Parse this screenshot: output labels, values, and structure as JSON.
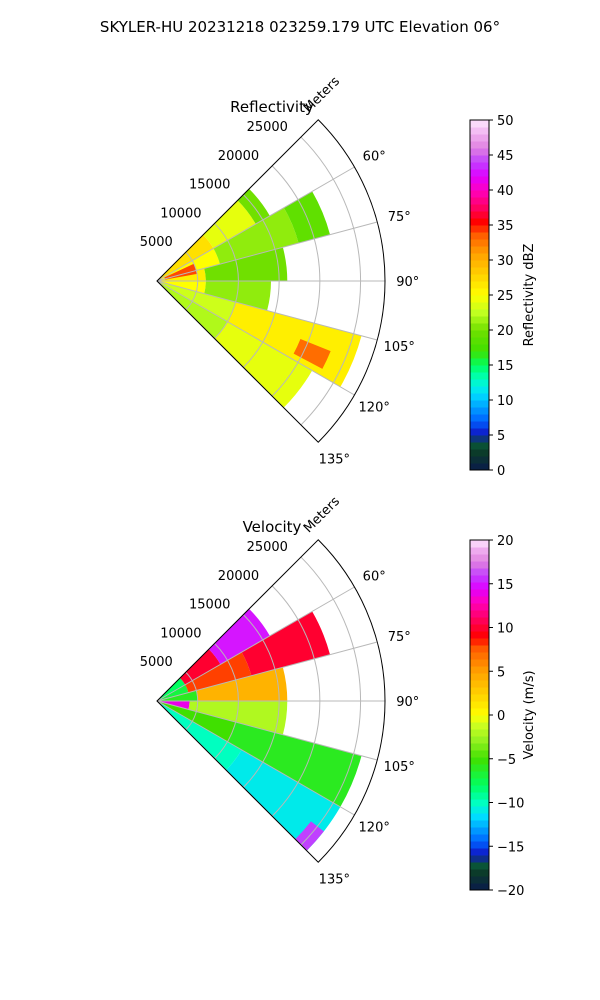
{
  "figure": {
    "suptitle": "SKYLER-HU  20231218  023259.179 UTC Elevation 06°"
  },
  "chart_data": [
    {
      "type": "heatmap",
      "title": "Reflectivity",
      "projection": "polar sector (PPI)",
      "range_label": "Meters",
      "range_ticks": [
        5000,
        10000,
        15000,
        20000,
        25000
      ],
      "range_tick_labels": [
        "5000",
        "10000",
        "15000",
        "20000",
        "25000"
      ],
      "range_max": 28000,
      "azimuth_range_deg": [
        45,
        135
      ],
      "azimuth_ticks_deg": [
        60,
        75,
        90,
        105,
        120,
        135
      ],
      "azimuth_tick_labels": [
        "60°",
        "75°",
        "90°",
        "105°",
        "120°",
        "135°"
      ],
      "grid": true,
      "colorbar": {
        "label": "Reflectivity dBZ",
        "range": [
          0,
          50
        ],
        "ticks": [
          0,
          5,
          10,
          15,
          20,
          25,
          30,
          35,
          40,
          45,
          50
        ],
        "tick_labels": [
          "0",
          "5",
          "10",
          "15",
          "20",
          "25",
          "30",
          "35",
          "40",
          "45",
          "50"
        ],
        "position": "right"
      },
      "stops": [
        {
          "v": 0,
          "c": "#0a1a4a"
        },
        {
          "v": 2.5,
          "c": "#0b3b2a"
        },
        {
          "v": 4,
          "c": "#0a5a3a"
        },
        {
          "v": 5,
          "c": "#1010c0"
        },
        {
          "v": 7,
          "c": "#0060ff"
        },
        {
          "v": 9,
          "c": "#00a0ff"
        },
        {
          "v": 11,
          "c": "#00e0ff"
        },
        {
          "v": 13,
          "c": "#00ffc0"
        },
        {
          "v": 15,
          "c": "#00ff60"
        },
        {
          "v": 17,
          "c": "#40e000"
        },
        {
          "v": 20,
          "c": "#70e000"
        },
        {
          "v": 22.5,
          "c": "#c0ff20"
        },
        {
          "v": 25,
          "c": "#ffff00"
        },
        {
          "v": 28,
          "c": "#ffd000"
        },
        {
          "v": 31,
          "c": "#ffa000"
        },
        {
          "v": 33.5,
          "c": "#ff6000"
        },
        {
          "v": 35.5,
          "c": "#ff0000"
        },
        {
          "v": 37.5,
          "c": "#ff0060"
        },
        {
          "v": 40,
          "c": "#ff00c0"
        },
        {
          "v": 42,
          "c": "#e000ff"
        },
        {
          "v": 44,
          "c": "#c040ff"
        },
        {
          "v": 46,
          "c": "#e080e0"
        },
        {
          "v": 48,
          "c": "#f0b0f0"
        },
        {
          "v": 50,
          "c": "#ffe8ff"
        }
      ],
      "field": [
        {
          "az": [
            45,
            60
          ],
          "r": [
            0,
            8000
          ],
          "v": 27
        },
        {
          "az": [
            45,
            60
          ],
          "r": [
            8000,
            14000
          ],
          "v": 24
        },
        {
          "az": [
            45,
            60
          ],
          "r": [
            14000,
            16000
          ],
          "v": 20
        },
        {
          "az": [
            60,
            75
          ],
          "r": [
            0,
            8000
          ],
          "v": 25
        },
        {
          "az": [
            60,
            75
          ],
          "r": [
            8000,
            18000
          ],
          "v": 21
        },
        {
          "az": [
            60,
            75
          ],
          "r": [
            18000,
            22000
          ],
          "v": 19
        },
        {
          "az": [
            75,
            90
          ],
          "r": [
            0,
            6000
          ],
          "v": 26
        },
        {
          "az": [
            75,
            90
          ],
          "r": [
            6000,
            16000
          ],
          "v": 20
        },
        {
          "az": [
            90,
            105
          ],
          "r": [
            0,
            6000
          ],
          "v": 25
        },
        {
          "az": [
            90,
            105
          ],
          "r": [
            6000,
            14000
          ],
          "v": 21
        },
        {
          "az": [
            105,
            120
          ],
          "r": [
            0,
            10000
          ],
          "v": 23
        },
        {
          "az": [
            105,
            120
          ],
          "r": [
            10000,
            26000
          ],
          "v": 26
        },
        {
          "az": [
            120,
            135
          ],
          "r": [
            0,
            10000
          ],
          "v": 22
        },
        {
          "az": [
            120,
            135
          ],
          "r": [
            10000,
            22000
          ],
          "v": 24
        },
        {
          "az": [
            65,
            80
          ],
          "r": [
            1000,
            5000
          ],
          "v": 34
        },
        {
          "az": [
            112,
            118
          ],
          "r": [
            19000,
            23000
          ],
          "v": 33
        }
      ]
    },
    {
      "type": "heatmap",
      "title": "Velocity",
      "projection": "polar sector (PPI)",
      "range_label": "Meters",
      "range_ticks": [
        5000,
        10000,
        15000,
        20000,
        25000
      ],
      "range_tick_labels": [
        "5000",
        "10000",
        "15000",
        "20000",
        "25000"
      ],
      "range_max": 28000,
      "azimuth_range_deg": [
        45,
        135
      ],
      "azimuth_ticks_deg": [
        60,
        75,
        90,
        105,
        120,
        135
      ],
      "azimuth_tick_labels": [
        "60°",
        "75°",
        "90°",
        "105°",
        "120°",
        "135°"
      ],
      "grid": true,
      "colorbar": {
        "label": "Velocity (m/s)",
        "range": [
          -20,
          20
        ],
        "ticks": [
          -20,
          -15,
          -10,
          -5,
          0,
          5,
          10,
          15,
          20
        ],
        "tick_labels": [
          "−20",
          "−15",
          "−10",
          "−5",
          "0",
          "5",
          "10",
          "15",
          "20"
        ],
        "position": "right"
      },
      "stops": [
        {
          "v": -20,
          "c": "#0a1a4a"
        },
        {
          "v": -18,
          "c": "#0b3b2a"
        },
        {
          "v": -17,
          "c": "#0a5a3a"
        },
        {
          "v": -16,
          "c": "#1010c0"
        },
        {
          "v": -14.5,
          "c": "#0060ff"
        },
        {
          "v": -13,
          "c": "#00a0ff"
        },
        {
          "v": -11.5,
          "c": "#00e0ff"
        },
        {
          "v": -10,
          "c": "#00ffc0"
        },
        {
          "v": -8,
          "c": "#00ff60"
        },
        {
          "v": -5,
          "c": "#40e000"
        },
        {
          "v": -3,
          "c": "#90f020"
        },
        {
          "v": -1,
          "c": "#d0ff20"
        },
        {
          "v": 0,
          "c": "#ffff00"
        },
        {
          "v": 2.5,
          "c": "#ffd000"
        },
        {
          "v": 5,
          "c": "#ffa000"
        },
        {
          "v": 7.5,
          "c": "#ff6000"
        },
        {
          "v": 9,
          "c": "#ff0000"
        },
        {
          "v": 11,
          "c": "#ff0060"
        },
        {
          "v": 13,
          "c": "#ff00c0"
        },
        {
          "v": 14.5,
          "c": "#e000ff"
        },
        {
          "v": 16,
          "c": "#c040ff"
        },
        {
          "v": 17.5,
          "c": "#e080e0"
        },
        {
          "v": 19,
          "c": "#f0b0f0"
        },
        {
          "v": 20,
          "c": "#ffe8ff"
        }
      ],
      "field": [
        {
          "az": [
            45,
            60
          ],
          "r": [
            0,
            4000
          ],
          "v": -8
        },
        {
          "az": [
            45,
            60
          ],
          "r": [
            4000,
            9000
          ],
          "v": 10
        },
        {
          "az": [
            45,
            60
          ],
          "r": [
            9000,
            16000
          ],
          "v": 15
        },
        {
          "az": [
            60,
            75
          ],
          "r": [
            0,
            4000
          ],
          "v": -7
        },
        {
          "az": [
            60,
            75
          ],
          "r": [
            4000,
            12000
          ],
          "v": 8
        },
        {
          "az": [
            60,
            75
          ],
          "r": [
            12000,
            22000
          ],
          "v": 10
        },
        {
          "az": [
            75,
            90
          ],
          "r": [
            0,
            5000
          ],
          "v": -6
        },
        {
          "az": [
            75,
            90
          ],
          "r": [
            5000,
            16000
          ],
          "v": 4
        },
        {
          "az": [
            90,
            105
          ],
          "r": [
            0,
            4000
          ],
          "v": 14
        },
        {
          "az": [
            90,
            105
          ],
          "r": [
            4000,
            16000
          ],
          "v": -2
        },
        {
          "az": [
            105,
            120
          ],
          "r": [
            0,
            10000
          ],
          "v": -5
        },
        {
          "az": [
            105,
            120
          ],
          "r": [
            10000,
            26000
          ],
          "v": -6
        },
        {
          "az": [
            120,
            135
          ],
          "r": [
            0,
            12000
          ],
          "v": -10
        },
        {
          "az": [
            120,
            135
          ],
          "r": [
            12000,
            26000
          ],
          "v": -11
        },
        {
          "az": [
            128,
            135
          ],
          "r": [
            24000,
            26000
          ],
          "v": 16
        }
      ]
    }
  ]
}
